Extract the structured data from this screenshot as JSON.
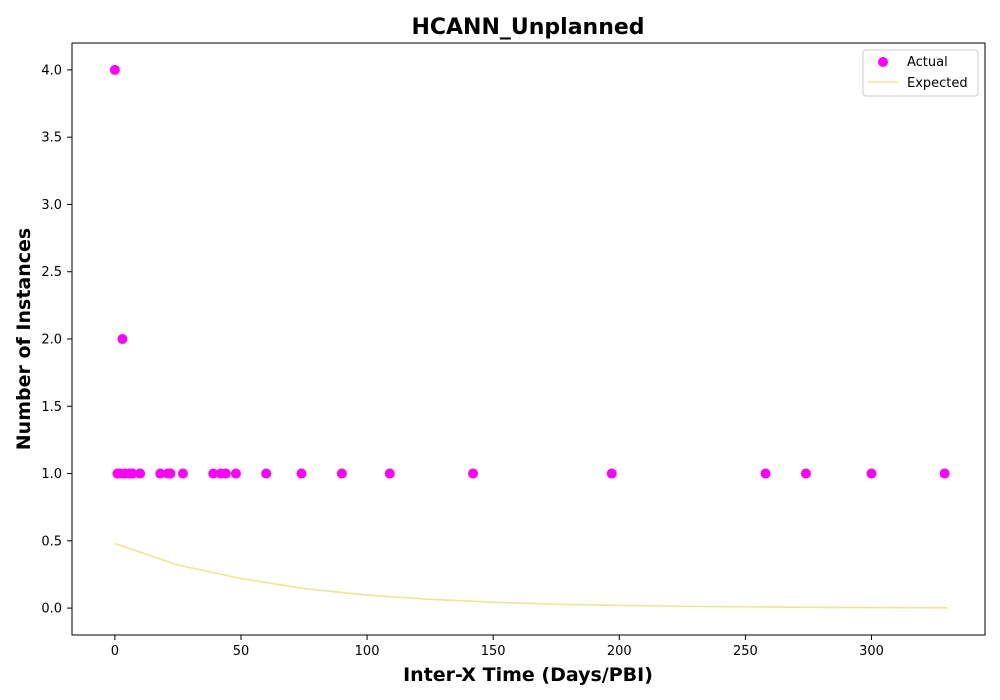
{
  "chart_data": {
    "type": "scatter",
    "title": "HCANN_Unplanned",
    "xlabel": "Inter-X Time (Days/PBI)",
    "ylabel": "Number of Instances",
    "xlim": [
      -17,
      345
    ],
    "ylim": [
      -0.2,
      4.2
    ],
    "xticks": [
      0,
      50,
      100,
      150,
      200,
      250,
      300
    ],
    "yticks": [
      0.0,
      0.5,
      1.0,
      1.5,
      2.0,
      2.5,
      3.0,
      3.5,
      4.0
    ],
    "xtick_labels": [
      "0",
      "50",
      "100",
      "150",
      "200",
      "250",
      "300"
    ],
    "ytick_labels": [
      "0.0",
      "0.5",
      "1.0",
      "1.5",
      "2.0",
      "2.5",
      "3.0",
      "3.5",
      "4.0"
    ],
    "grid": false,
    "legend_position": "top-right",
    "series": [
      {
        "name": "Actual",
        "kind": "scatter",
        "color": "#ff00ff",
        "points": [
          {
            "x": 0,
            "y": 4
          },
          {
            "x": 1,
            "y": 1
          },
          {
            "x": 2,
            "y": 1
          },
          {
            "x": 3,
            "y": 2
          },
          {
            "x": 4,
            "y": 1
          },
          {
            "x": 6,
            "y": 1
          },
          {
            "x": 7,
            "y": 1
          },
          {
            "x": 10,
            "y": 1
          },
          {
            "x": 18,
            "y": 1
          },
          {
            "x": 21,
            "y": 1
          },
          {
            "x": 22,
            "y": 1
          },
          {
            "x": 27,
            "y": 1
          },
          {
            "x": 39,
            "y": 1
          },
          {
            "x": 42,
            "y": 1
          },
          {
            "x": 44,
            "y": 1
          },
          {
            "x": 48,
            "y": 1
          },
          {
            "x": 60,
            "y": 1
          },
          {
            "x": 74,
            "y": 1
          },
          {
            "x": 90,
            "y": 1
          },
          {
            "x": 109,
            "y": 1
          },
          {
            "x": 142,
            "y": 1
          },
          {
            "x": 197,
            "y": 1
          },
          {
            "x": 258,
            "y": 1
          },
          {
            "x": 274,
            "y": 1
          },
          {
            "x": 300,
            "y": 1
          },
          {
            "x": 329,
            "y": 1
          }
        ]
      },
      {
        "name": "Expected",
        "kind": "line",
        "color": "#f0e68c",
        "points": [
          {
            "x": 0,
            "y": 0.48
          },
          {
            "x": 25,
            "y": 0.32
          },
          {
            "x": 50,
            "y": 0.22
          },
          {
            "x": 75,
            "y": 0.145
          },
          {
            "x": 100,
            "y": 0.097
          },
          {
            "x": 125,
            "y": 0.065
          },
          {
            "x": 150,
            "y": 0.044
          },
          {
            "x": 175,
            "y": 0.029
          },
          {
            "x": 200,
            "y": 0.02
          },
          {
            "x": 225,
            "y": 0.013
          },
          {
            "x": 250,
            "y": 0.009
          },
          {
            "x": 275,
            "y": 0.006
          },
          {
            "x": 300,
            "y": 0.004
          },
          {
            "x": 330,
            "y": 0.002
          }
        ]
      }
    ]
  }
}
